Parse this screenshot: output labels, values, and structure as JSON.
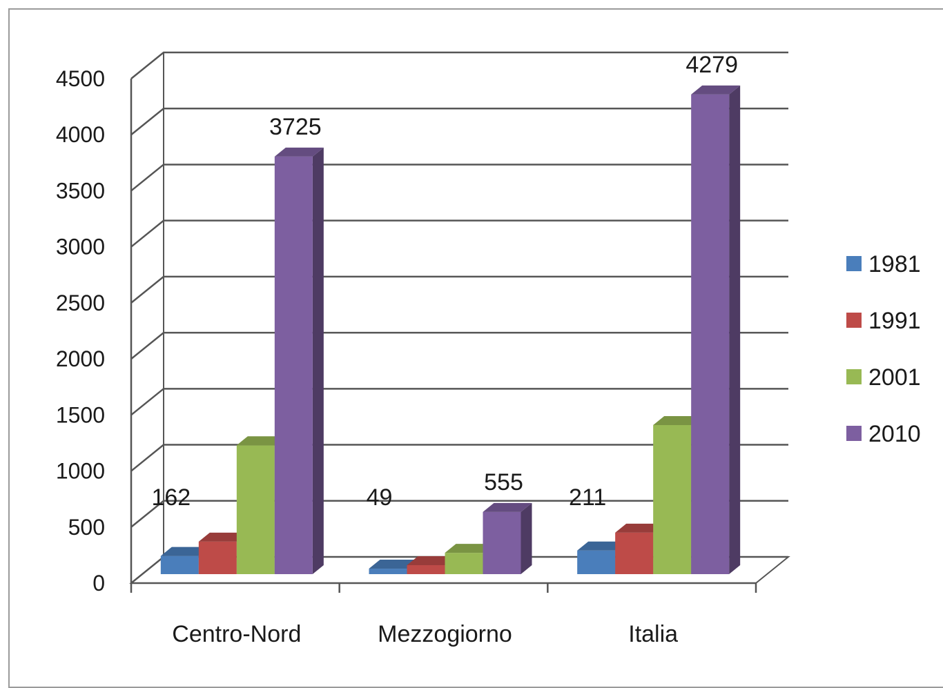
{
  "chart_data": {
    "type": "bar",
    "categories": [
      "Centro-Nord",
      "Mezzogiorno",
      "Italia"
    ],
    "series": [
      {
        "name": "1981",
        "values": [
          162,
          49,
          211
        ],
        "color": "#4a7ebb"
      },
      {
        "name": "1991",
        "values": [
          290,
          80,
          370
        ],
        "color": "#be4b48"
      },
      {
        "name": "2001",
        "values": [
          1150,
          190,
          1330
        ],
        "color": "#98b954"
      },
      {
        "name": "2010",
        "values": [
          3725,
          555,
          4279
        ],
        "color": "#7d5fa0"
      }
    ],
    "data_labels": [
      {
        "category": "Centro-Nord",
        "series": "1981",
        "text": "162"
      },
      {
        "category": "Centro-Nord",
        "series": "2010",
        "text": "3725"
      },
      {
        "category": "Mezzogiorno",
        "series": "1981",
        "text": "49"
      },
      {
        "category": "Mezzogiorno",
        "series": "2010",
        "text": "555"
      },
      {
        "category": "Italia",
        "series": "1981",
        "text": "211"
      },
      {
        "category": "Italia",
        "series": "2010",
        "text": "4279"
      }
    ],
    "yticks": [
      "0",
      "500",
      "1000",
      "1500",
      "2000",
      "2500",
      "3000",
      "3500",
      "4000",
      "4500"
    ],
    "ylim": [
      0,
      4500
    ],
    "grid": true,
    "three_d": true,
    "legend_position": "right",
    "title": "",
    "xlabel": "",
    "ylabel": ""
  }
}
